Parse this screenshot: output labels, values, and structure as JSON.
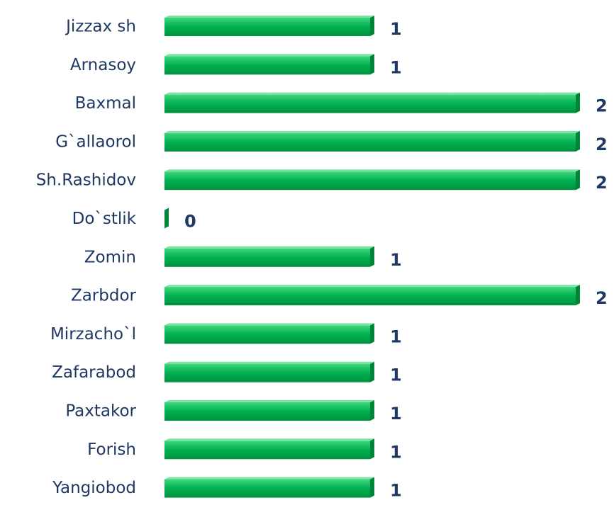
{
  "chart_data": {
    "type": "bar",
    "orientation": "horizontal",
    "categories": [
      "Jizzax sh",
      "Arnasoy",
      "Baxmal",
      "G`allaorol",
      "Sh.Rashidov",
      "Do`stlik",
      "Zomin",
      "Zarbdor",
      "Mirzacho`l",
      "Zafarabod",
      "Paxtakor",
      "Forish",
      "Yangiobod"
    ],
    "values": [
      1,
      1,
      2,
      2,
      2,
      0,
      1,
      2,
      1,
      1,
      1,
      1,
      1
    ],
    "color": "#00b050",
    "xlim": [
      0,
      2
    ]
  }
}
